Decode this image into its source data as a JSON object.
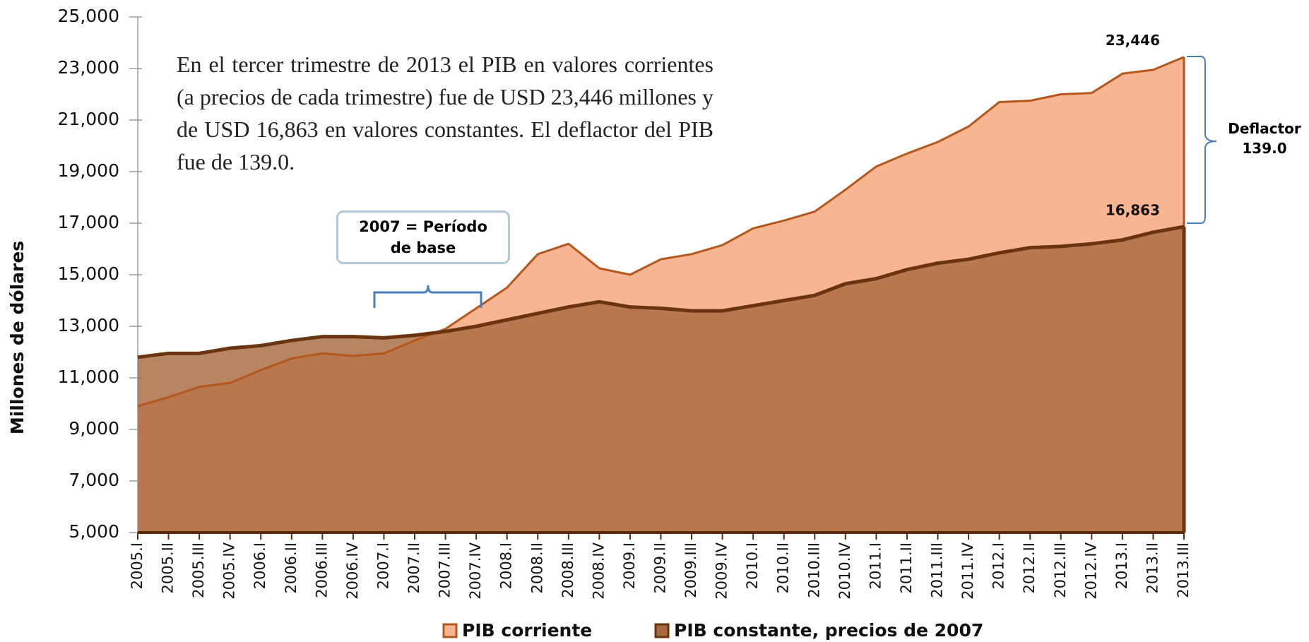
{
  "chart_data": {
    "type": "area",
    "text": "En el tercer trimestre de 2013 el PIB en valores corrientes (a precios de cada trimestre) fue de USD 23,446 millones y de USD 16,863 en valores constantes. El deflactor del PIB fue de 139.0.",
    "y_label": "Millones de dólares",
    "annotations": [
      "2007 = Período de base",
      "Deflactor 139.0"
    ],
    "categories": [
      "2005.I",
      "2005.II",
      "2005.III",
      "2005.IV",
      "2006.I",
      "2006.II",
      "2006.III",
      "2006.IV",
      "2007.I",
      "2007.II",
      "2007.III",
      "2007.IV",
      "2008.I",
      "2008.II",
      "2008.III",
      "2008.IV",
      "2009.I",
      "2009.II",
      "2009.III",
      "2009.IV",
      "2010.I",
      "2010.II",
      "2010.III",
      "2010.IV",
      "2011.I",
      "2011.II",
      "2011.III",
      "2011.IV",
      "2012.I",
      "2012.II",
      "2012.III",
      "2012.IV",
      "2013.I",
      "2013.II",
      "2013.III"
    ],
    "series": [
      {
        "name": "PIB corriente",
        "color": "#f8b592",
        "edge_color": "#b5561a",
        "values": [
          9900,
          10250,
          10650,
          10800,
          11300,
          11750,
          11950,
          11850,
          11950,
          12450,
          12900,
          13700,
          14500,
          15800,
          16200,
          15250,
          15000,
          15600,
          15800,
          16150,
          16800,
          17100,
          17450,
          18300,
          19200,
          19700,
          20150,
          20750,
          21700,
          21750,
          22000,
          22050,
          22800,
          22950,
          23446
        ],
        "value_labels": [
          null,
          null,
          null,
          null,
          null,
          null,
          null,
          null,
          null,
          null,
          null,
          null,
          null,
          null,
          null,
          null,
          null,
          null,
          null,
          null,
          null,
          null,
          null,
          null,
          null,
          null,
          null,
          null,
          null,
          null,
          null,
          null,
          null,
          null,
          "23,446"
        ]
      },
      {
        "name": "PIB constante, precios de 2007",
        "color": "#a9693f",
        "edge_color": "#6b3410",
        "values": [
          11800,
          11950,
          11950,
          12150,
          12250,
          12450,
          12600,
          12600,
          12550,
          12650,
          12800,
          13000,
          13250,
          13500,
          13750,
          13950,
          13750,
          13700,
          13600,
          13600,
          13800,
          14000,
          14200,
          14650,
          14850,
          15200,
          15450,
          15600,
          15850,
          16050,
          16100,
          16200,
          16350,
          16650,
          16863
        ],
        "value_labels": [
          null,
          null,
          null,
          null,
          null,
          null,
          null,
          null,
          null,
          null,
          null,
          null,
          null,
          null,
          null,
          null,
          null,
          null,
          null,
          null,
          null,
          null,
          null,
          null,
          null,
          null,
          null,
          null,
          null,
          null,
          null,
          null,
          null,
          null,
          "16,863"
        ]
      }
    ],
    "ylim": [
      5000,
      25000
    ],
    "yticks": [
      {
        "value": 5000,
        "label": "5,000"
      },
      {
        "value": 7000,
        "label": "7,000"
      },
      {
        "value": 9000,
        "label": "9,000"
      },
      {
        "value": 11000,
        "label": "11,000"
      },
      {
        "value": 13000,
        "label": "13,000"
      },
      {
        "value": 15000,
        "label": "15,000"
      },
      {
        "value": 17000,
        "label": "17,000"
      },
      {
        "value": 19000,
        "label": "19,000"
      },
      {
        "value": 21000,
        "label": "21,000"
      },
      {
        "value": 23000,
        "label": "23,000"
      },
      {
        "value": 25000,
        "label": "25,000"
      }
    ],
    "grid": false
  }
}
